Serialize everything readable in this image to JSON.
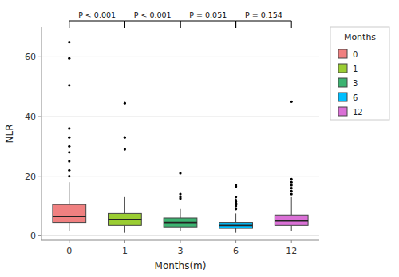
{
  "chart_data": {
    "type": "box",
    "xlabel": "Months(m)",
    "ylabel": "NLR",
    "categories": [
      "0",
      "1",
      "3",
      "6",
      "12"
    ],
    "colors": [
      "#F08080",
      "#9ACD32",
      "#3CB371",
      "#00BFFF",
      "#DA70D6"
    ],
    "q1": [
      4.5,
      3.5,
      3.0,
      2.5,
      3.5
    ],
    "median": [
      6.5,
      5.5,
      4.5,
      3.5,
      5.0
    ],
    "q3": [
      10.5,
      7.5,
      6.0,
      4.5,
      7.0
    ],
    "whisker_low": [
      1.5,
      1.0,
      1.5,
      1.0,
      1.5
    ],
    "whisker_high": [
      18.0,
      13.0,
      9.0,
      7.5,
      13.0
    ],
    "outliers": [
      [
        20.0,
        22.0,
        25.0,
        28.0,
        30.0,
        33.0,
        36.0,
        50.5,
        59.5,
        65.0
      ],
      [
        29.0,
        33.0,
        44.5
      ],
      [
        12.5,
        13.0,
        14.0,
        21.0
      ],
      [
        9.0,
        10.0,
        10.5,
        11.0,
        11.5,
        12.0,
        13.0,
        16.5,
        17.0
      ],
      [
        14.0,
        15.0,
        16.0,
        17.0,
        18.0,
        19.0,
        45.0
      ]
    ],
    "ylim": [
      -1.5,
      70
    ],
    "yticks": [
      0,
      20,
      40,
      60
    ],
    "grid": true,
    "legend": "right",
    "legend_title": "Months",
    "legend_labels": [
      "0",
      "1",
      "3",
      "6",
      "12"
    ],
    "annotations": [
      {
        "text": "P < 0.001",
        "between": [
          "0",
          "1"
        ]
      },
      {
        "text": "P < 0.001",
        "between": [
          "1",
          "3"
        ]
      },
      {
        "text": "P = 0.051",
        "between": [
          "3",
          "6"
        ]
      },
      {
        "text": "P = 0.154",
        "between": [
          "6",
          "12"
        ]
      }
    ]
  }
}
